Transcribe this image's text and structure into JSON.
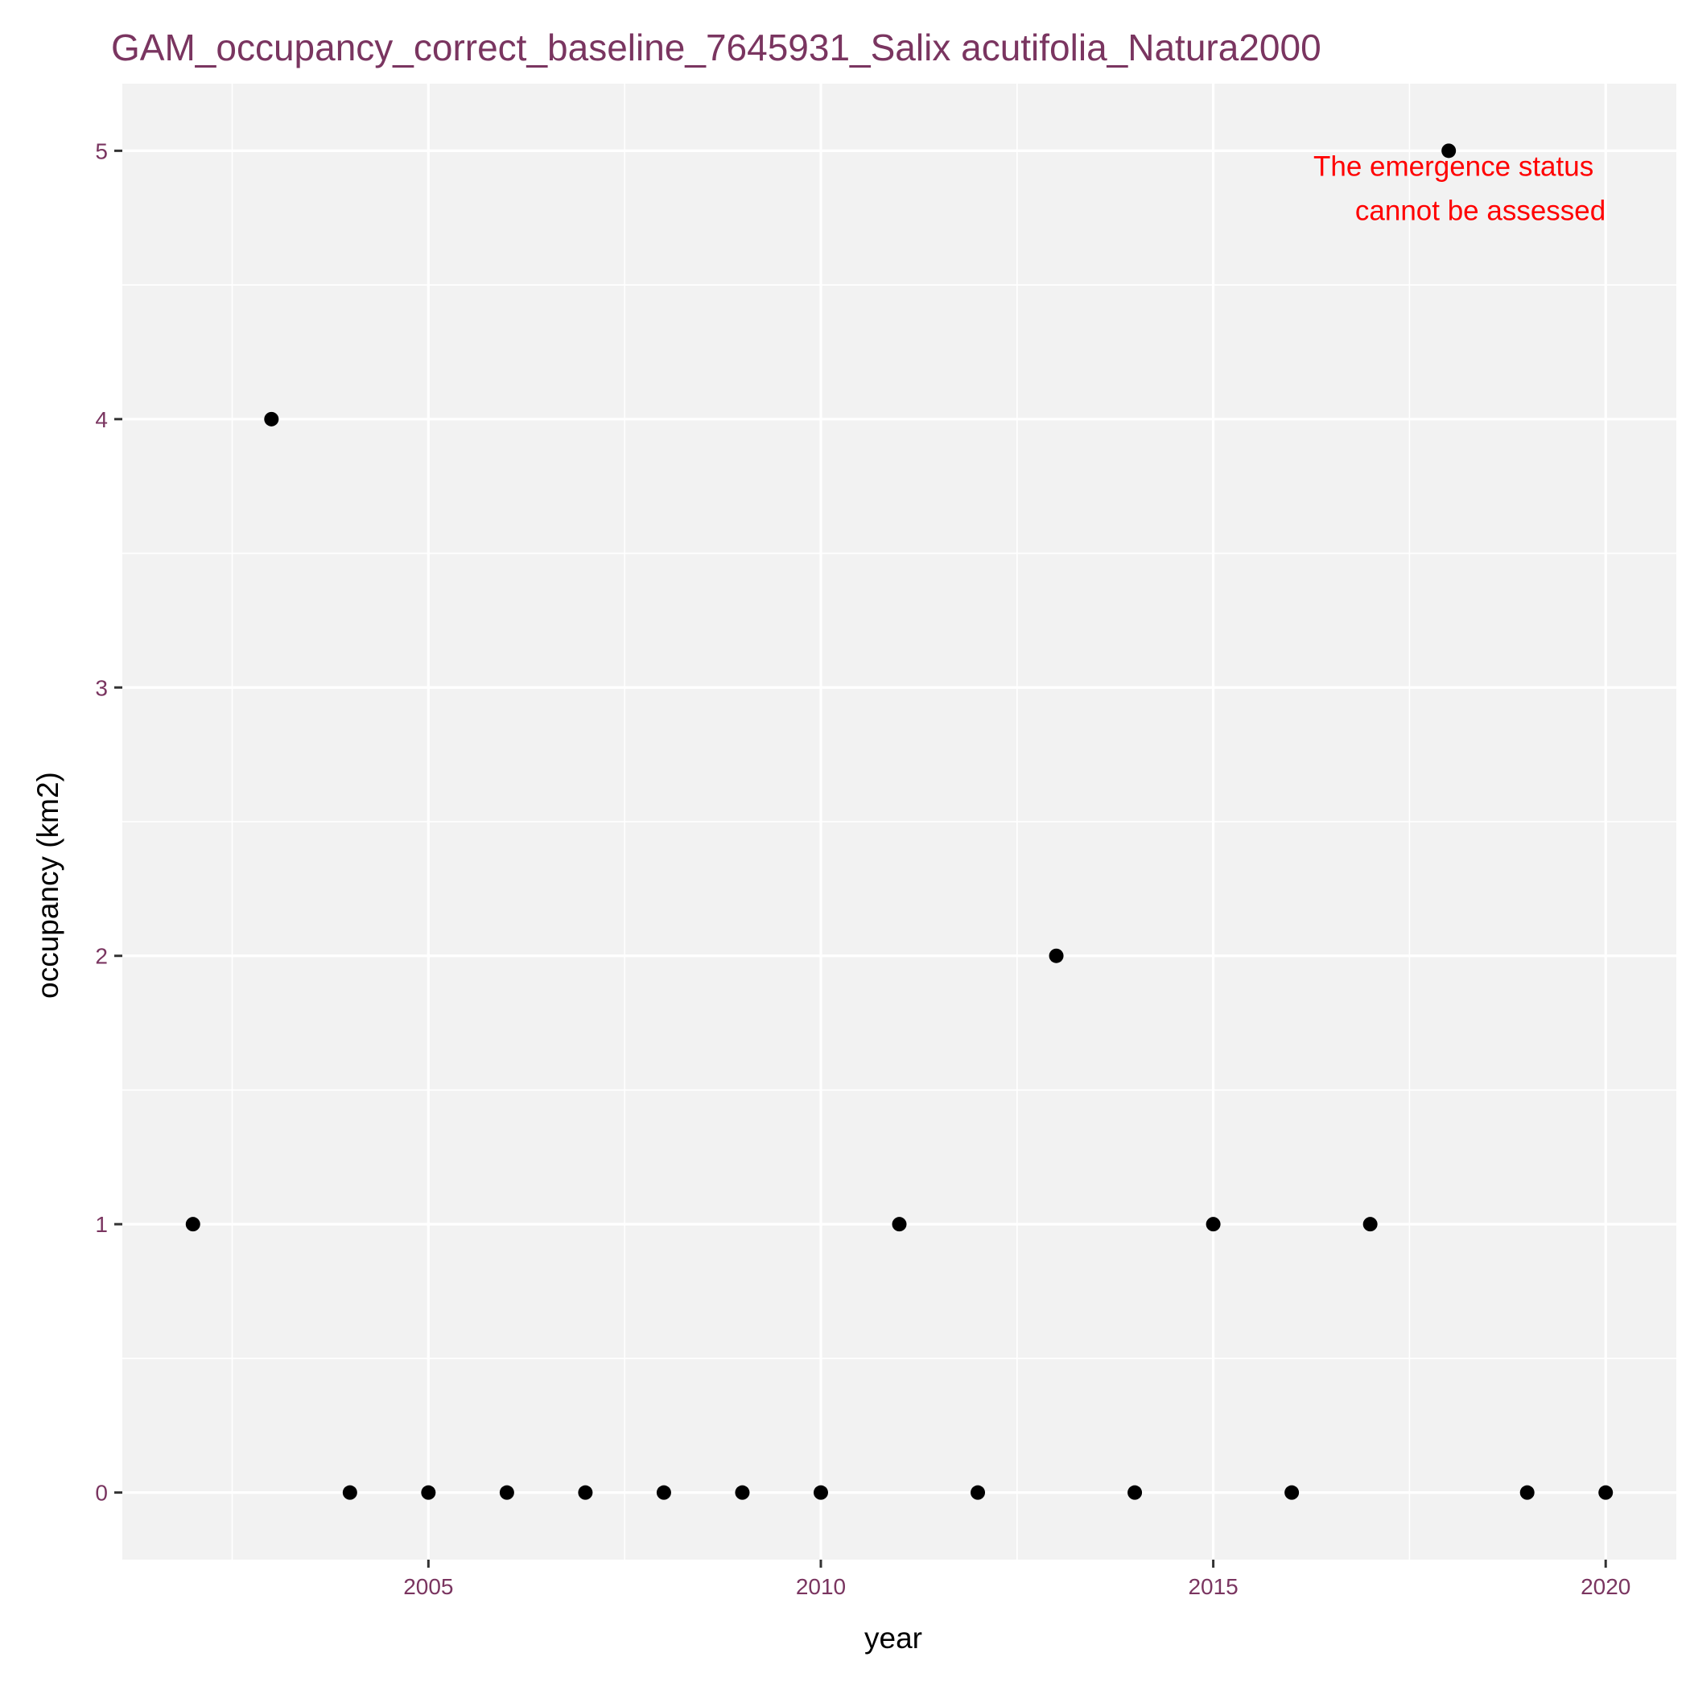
{
  "chart_data": {
    "type": "scatter",
    "title": "GAM_occupancy_correct_baseline_7645931_Salix acutifolia_Natura2000",
    "xlabel": "year",
    "ylabel": "occupancy (km2)",
    "x": [
      2002,
      2003,
      2004,
      2005,
      2006,
      2007,
      2008,
      2009,
      2010,
      2011,
      2012,
      2013,
      2014,
      2015,
      2016,
      2017,
      2018,
      2019,
      2020
    ],
    "y": [
      1,
      4,
      0,
      0,
      0,
      0,
      0,
      0,
      0,
      1,
      0,
      2,
      0,
      1,
      0,
      1,
      5,
      0,
      0
    ],
    "xlim": [
      2001.1,
      2020.9
    ],
    "ylim": [
      -0.25,
      5.25
    ],
    "x_ticks": [
      2005,
      2010,
      2015,
      2020
    ],
    "x_tick_labels": [
      "2005",
      "2010",
      "2015",
      "2020"
    ],
    "y_ticks": [
      0,
      1,
      2,
      3,
      4,
      5
    ],
    "y_tick_labels": [
      "0",
      "1",
      "2",
      "3",
      "4",
      "5"
    ],
    "grid": true,
    "annotation": {
      "lines": [
        "The emergence status",
        "cannot be assessed"
      ],
      "x": 2020,
      "y": 5,
      "color": "#ff0000"
    },
    "colors": {
      "panel_background": "#f2f2f2",
      "grid": "#ffffff",
      "points": "#000000",
      "title": "#7a3560",
      "tick_labels": "#7a3560"
    }
  }
}
